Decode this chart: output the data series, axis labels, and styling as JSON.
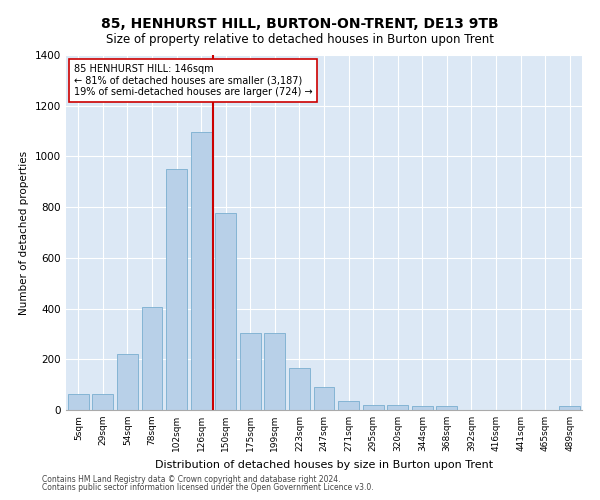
{
  "title": "85, HENHURST HILL, BURTON-ON-TRENT, DE13 9TB",
  "subtitle": "Size of property relative to detached houses in Burton upon Trent",
  "xlabel": "Distribution of detached houses by size in Burton upon Trent",
  "ylabel": "Number of detached properties",
  "footer1": "Contains HM Land Registry data © Crown copyright and database right 2024.",
  "footer2": "Contains public sector information licensed under the Open Government Licence v3.0.",
  "categories": [
    "5sqm",
    "29sqm",
    "54sqm",
    "78sqm",
    "102sqm",
    "126sqm",
    "150sqm",
    "175sqm",
    "199sqm",
    "223sqm",
    "247sqm",
    "271sqm",
    "295sqm",
    "320sqm",
    "344sqm",
    "368sqm",
    "392sqm",
    "416sqm",
    "441sqm",
    "465sqm",
    "489sqm"
  ],
  "values": [
    65,
    65,
    220,
    405,
    950,
    1095,
    775,
    305,
    305,
    165,
    90,
    35,
    20,
    20,
    15,
    15,
    0,
    0,
    0,
    0,
    15
  ],
  "bar_color": "#b8d0e8",
  "bar_edge_color": "#7aaed0",
  "vline_color": "#cc0000",
  "annotation_text": "85 HENHURST HILL: 146sqm\n← 81% of detached houses are smaller (3,187)\n19% of semi-detached houses are larger (724) →",
  "annotation_box_color": "#ffffff",
  "annotation_box_edge_color": "#cc0000",
  "ylim": [
    0,
    1400
  ],
  "yticks": [
    0,
    200,
    400,
    600,
    800,
    1000,
    1200,
    1400
  ],
  "bg_color": "#dce8f5",
  "fig_color": "#ffffff",
  "title_fontsize": 10,
  "subtitle_fontsize": 8.5
}
